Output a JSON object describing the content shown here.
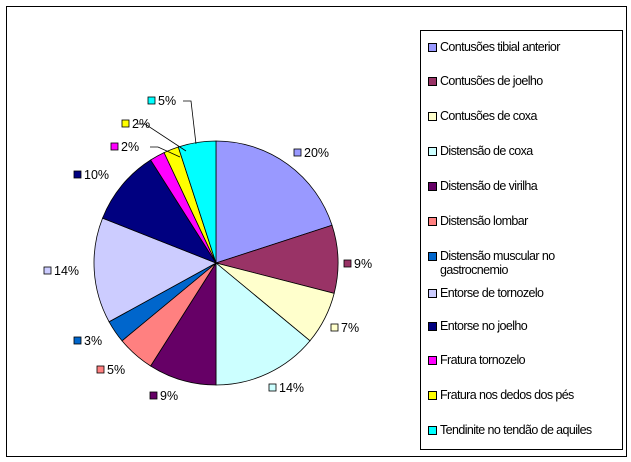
{
  "chart_data": {
    "type": "pie",
    "title": "",
    "legend_position": "right",
    "categories": [
      "Contusões tibial anterior",
      "Contusões de joelho",
      "Contusões de coxa",
      "Distensão de coxa",
      "Distensão de virilha",
      "Distensão lombar",
      "Distensão muscular no gastrocnemio",
      "Entorse de tornozelo",
      "Entorse no joelho",
      "Fratura tornozelo",
      "Fratura nos dedos dos pés",
      "Tendinite no tendão de aquiles"
    ],
    "values": [
      20,
      9,
      7,
      14,
      9,
      5,
      3,
      14,
      10,
      2,
      2,
      5
    ],
    "data_labels": [
      "20%",
      "9%",
      "7%",
      "14%",
      "9%",
      "5%",
      "3%",
      "14%",
      "10%",
      "2%",
      "2%",
      "5%"
    ],
    "colors": [
      "#9999FF",
      "#993366",
      "#FFFFCC",
      "#CCFFFF",
      "#660066",
      "#FF8080",
      "#0066CC",
      "#CCCCFF",
      "#000080",
      "#FF00FF",
      "#FFFF00",
      "#00FFFF"
    ]
  }
}
